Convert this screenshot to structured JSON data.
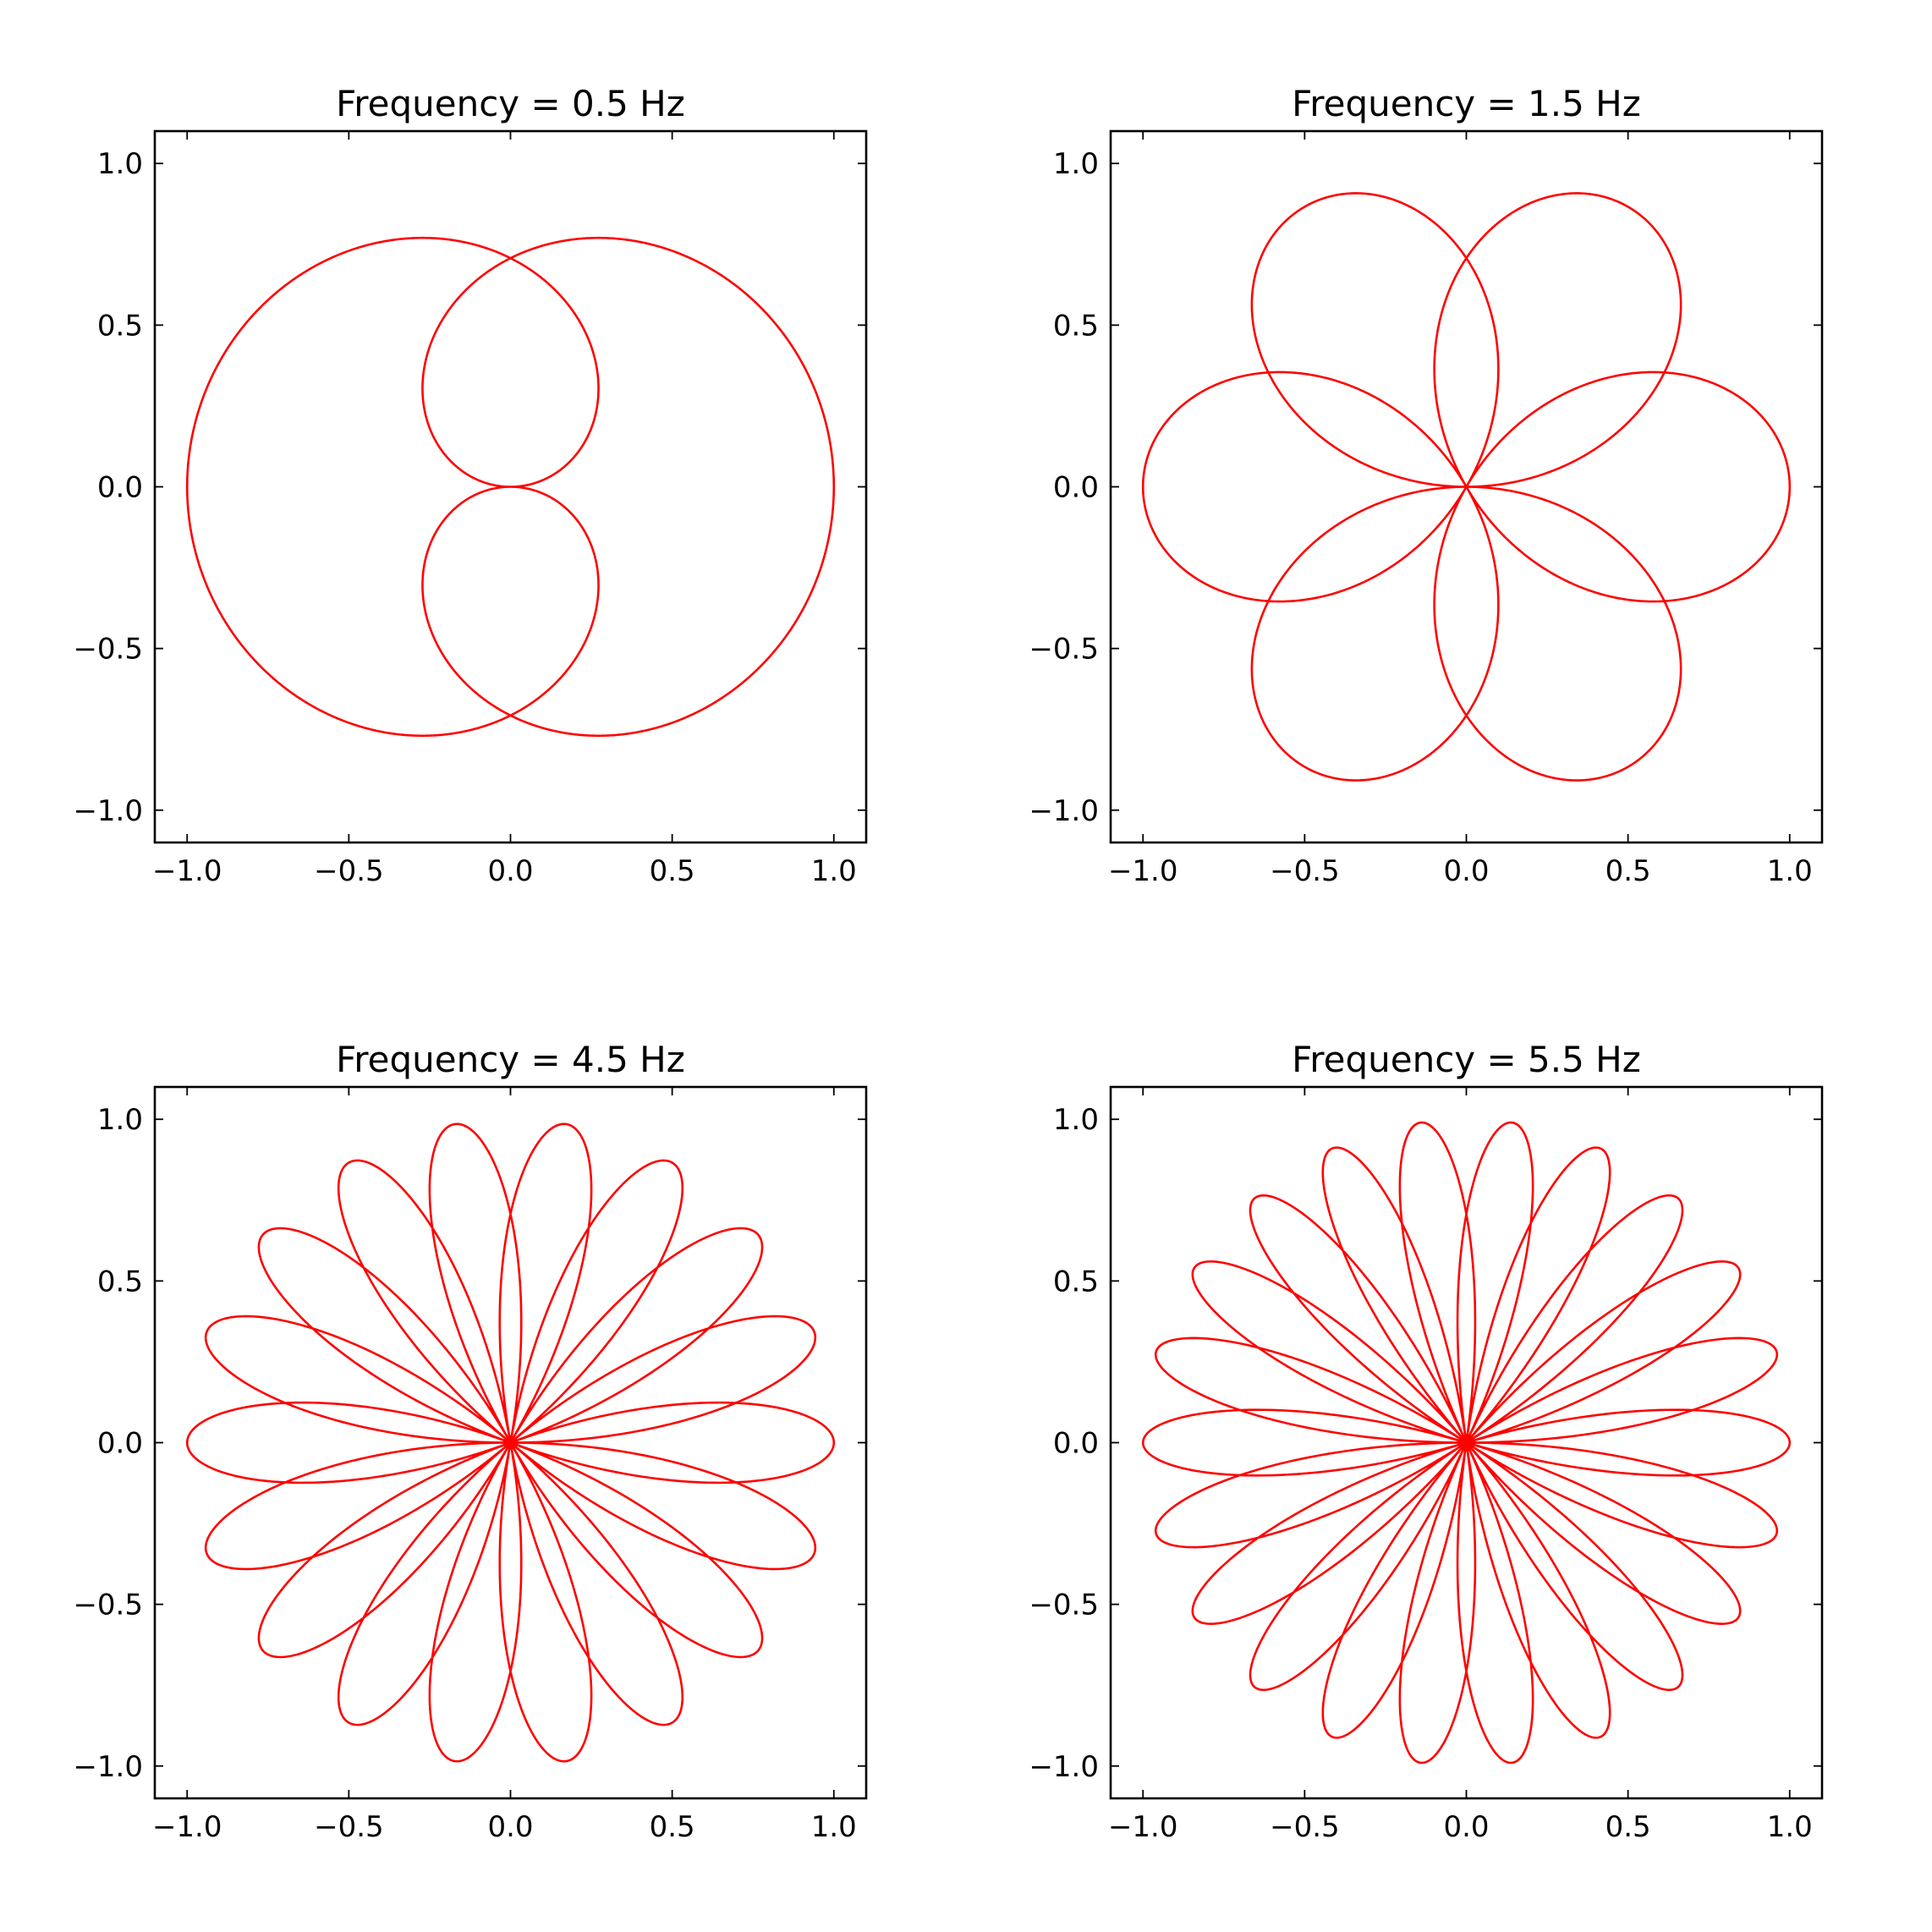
{
  "chart_data": [
    {
      "type": "line",
      "title": "Frequency = 0.5 Hz",
      "frequency_hz": 0.5,
      "xlim": [
        -1.1,
        1.1
      ],
      "ylim": [
        -1.1,
        1.1
      ],
      "xticks": [
        "−1.0",
        "−0.5",
        "0.0",
        "0.5",
        "1.0"
      ],
      "yticks": [
        "−1.0",
        "−0.5",
        "0.0",
        "0.5",
        "1.0"
      ],
      "grid": false,
      "curve": "x = sin(2π·f·t)·cos(2π·t), y = sin(2π·f·t)·sin(2π·t), t ∈ [0, 10]",
      "t_range": [
        0,
        10
      ],
      "color": "#ff0000"
    },
    {
      "type": "line",
      "title": "Frequency = 1.5 Hz",
      "frequency_hz": 1.5,
      "xlim": [
        -1.1,
        1.1
      ],
      "ylim": [
        -1.1,
        1.1
      ],
      "xticks": [
        "−1.0",
        "−0.5",
        "0.0",
        "0.5",
        "1.0"
      ],
      "yticks": [
        "−1.0",
        "−0.5",
        "0.0",
        "0.5",
        "1.0"
      ],
      "grid": false,
      "curve": "x = sin(2π·f·t)·cos(2π·t), y = sin(2π·f·t)·sin(2π·t), t ∈ [0, 10]",
      "t_range": [
        0,
        10
      ],
      "color": "#ff0000"
    },
    {
      "type": "line",
      "title": "Frequency = 4.5 Hz",
      "frequency_hz": 4.5,
      "xlim": [
        -1.1,
        1.1
      ],
      "ylim": [
        -1.1,
        1.1
      ],
      "xticks": [
        "−1.0",
        "−0.5",
        "0.0",
        "0.5",
        "1.0"
      ],
      "yticks": [
        "−1.0",
        "−0.5",
        "0.0",
        "0.5",
        "1.0"
      ],
      "grid": false,
      "curve": "x = sin(2π·f·t)·cos(2π·t), y = sin(2π·f·t)·sin(2π·t), t ∈ [0, 10]",
      "t_range": [
        0,
        10
      ],
      "color": "#ff0000"
    },
    {
      "type": "line",
      "title": "Frequency = 5.5 Hz",
      "frequency_hz": 5.5,
      "xlim": [
        -1.1,
        1.1
      ],
      "ylim": [
        -1.1,
        1.1
      ],
      "xticks": [
        "−1.0",
        "−0.5",
        "0.0",
        "0.5",
        "1.0"
      ],
      "yticks": [
        "−1.0",
        "−0.5",
        "0.0",
        "0.5",
        "1.0"
      ],
      "grid": false,
      "curve": "x = sin(2π·f·t)·cos(2π·t), y = sin(2π·f·t)·sin(2π·t), t ∈ [0, 10]",
      "t_range": [
        0,
        10
      ],
      "color": "#ff0000"
    }
  ]
}
